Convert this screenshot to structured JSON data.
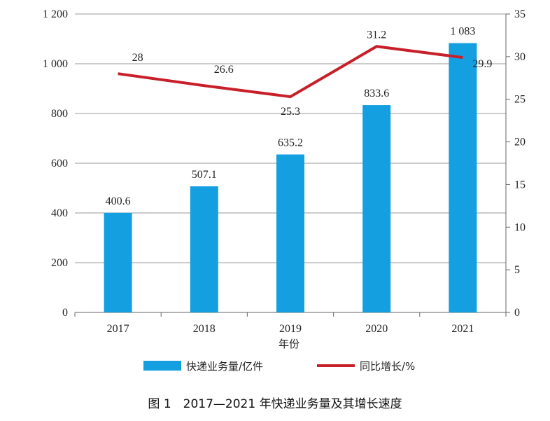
{
  "chart_data": {
    "type": "bar",
    "categories": [
      "2017",
      "2018",
      "2019",
      "2020",
      "2021"
    ],
    "xlabel": "年份",
    "ylim_left": [
      0,
      1200
    ],
    "yticks_left": [
      "0",
      "200",
      "400",
      "600",
      "800",
      "1 000",
      "1 200"
    ],
    "yticks_left_values": [
      0,
      200,
      400,
      600,
      800,
      1000,
      1200
    ],
    "ylim_right": [
      0,
      35
    ],
    "yticks_right": [
      "0",
      "5",
      "10",
      "15",
      "20",
      "25",
      "30",
      "35"
    ],
    "yticks_right_values": [
      0,
      5,
      10,
      15,
      20,
      25,
      30,
      35
    ],
    "grid": true,
    "legend_position": "bottom",
    "series": [
      {
        "name": "快递业务量/亿件",
        "type": "bar",
        "axis": "left",
        "color": "#139fe0",
        "values": [
          400.6,
          507.1,
          635.2,
          833.6,
          1083
        ],
        "labels": [
          "400.6",
          "507.1",
          "635.2",
          "833.6",
          "1 083"
        ]
      },
      {
        "name": "同比增长/%",
        "type": "line",
        "axis": "right",
        "color": "#c8202a",
        "values": [
          28,
          26.6,
          25.3,
          31.2,
          29.9
        ],
        "labels": [
          "28",
          "26.6",
          "25.3",
          "31.2",
          "29.9"
        ]
      }
    ],
    "caption": "图 1　2017—2021 年快递业务量及其增长速度"
  }
}
